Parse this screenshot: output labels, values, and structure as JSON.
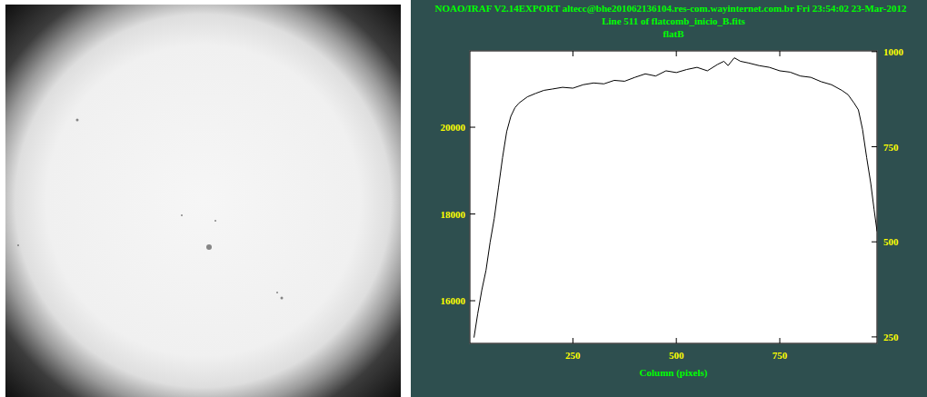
{
  "chart_data": {
    "type": "line",
    "title": "NOAO/IRAF V2.14EXPORT altecc@bhe201062136104.res-com.wayinternet.com.br Fri 23:54:02 23-Mar-2012",
    "subtitle": "Line 511 of flatcomb_inicio_B.fits",
    "annotations": [
      "flatB"
    ],
    "x_label": "Column (pixels)",
    "x": [
      11,
      20,
      30,
      40,
      50,
      60,
      70,
      80,
      90,
      100,
      110,
      120,
      140,
      160,
      180,
      200,
      225,
      250,
      275,
      300,
      325,
      350,
      375,
      400,
      425,
      450,
      475,
      500,
      525,
      550,
      575,
      600,
      615,
      625,
      640,
      655,
      675,
      700,
      725,
      750,
      775,
      800,
      825,
      850,
      875,
      900,
      915,
      930,
      940,
      950,
      960,
      970,
      978,
      985
    ],
    "series": [
      {
        "name": "flatB",
        "color": "#000000",
        "values": [
          15150,
          15700,
          16250,
          16700,
          17350,
          17900,
          18600,
          19300,
          19900,
          20250,
          20450,
          20560,
          20700,
          20780,
          20850,
          20880,
          20920,
          20900,
          20980,
          21020,
          21000,
          21080,
          21060,
          21150,
          21230,
          21180,
          21300,
          21260,
          21330,
          21380,
          21300,
          21450,
          21520,
          21420,
          21600,
          21520,
          21480,
          21420,
          21380,
          21300,
          21270,
          21180,
          21150,
          21050,
          20980,
          20850,
          20750,
          20550,
          20400,
          19950,
          19300,
          18700,
          18100,
          17600
        ]
      }
    ],
    "xlim": [
      1,
      985
    ],
    "xticks": [
      250,
      500,
      750
    ],
    "ylim": [
      15016,
      21760
    ],
    "yticks": [
      16000,
      18000,
      20000
    ],
    "y2lim": [
      233,
      1002
    ],
    "y2ticks": [
      250,
      500,
      750,
      1000
    ],
    "grid": false
  }
}
